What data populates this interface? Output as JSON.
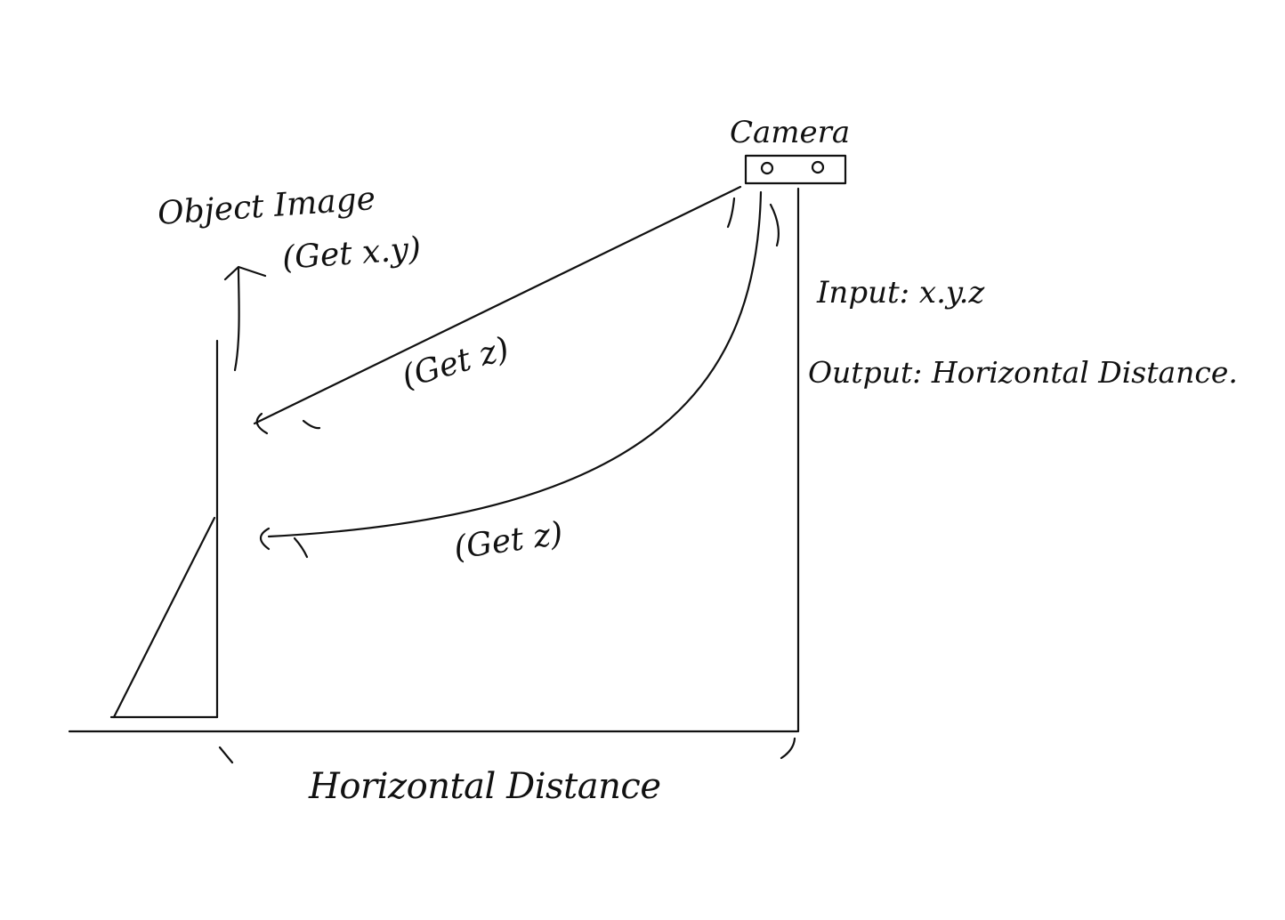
{
  "labels": {
    "camera": "Camera",
    "object_image": "Object Image",
    "get_xy": "(Get x.y)",
    "get_z_upper": "(Get z)",
    "get_z_lower": "(Get z)",
    "input": "Input: x.y.z",
    "output": "Output: Horizontal Distance.",
    "horizontal_distance": "Horizontal Distance"
  },
  "colors": {
    "ink": "#111111",
    "background": "#ffffff"
  }
}
